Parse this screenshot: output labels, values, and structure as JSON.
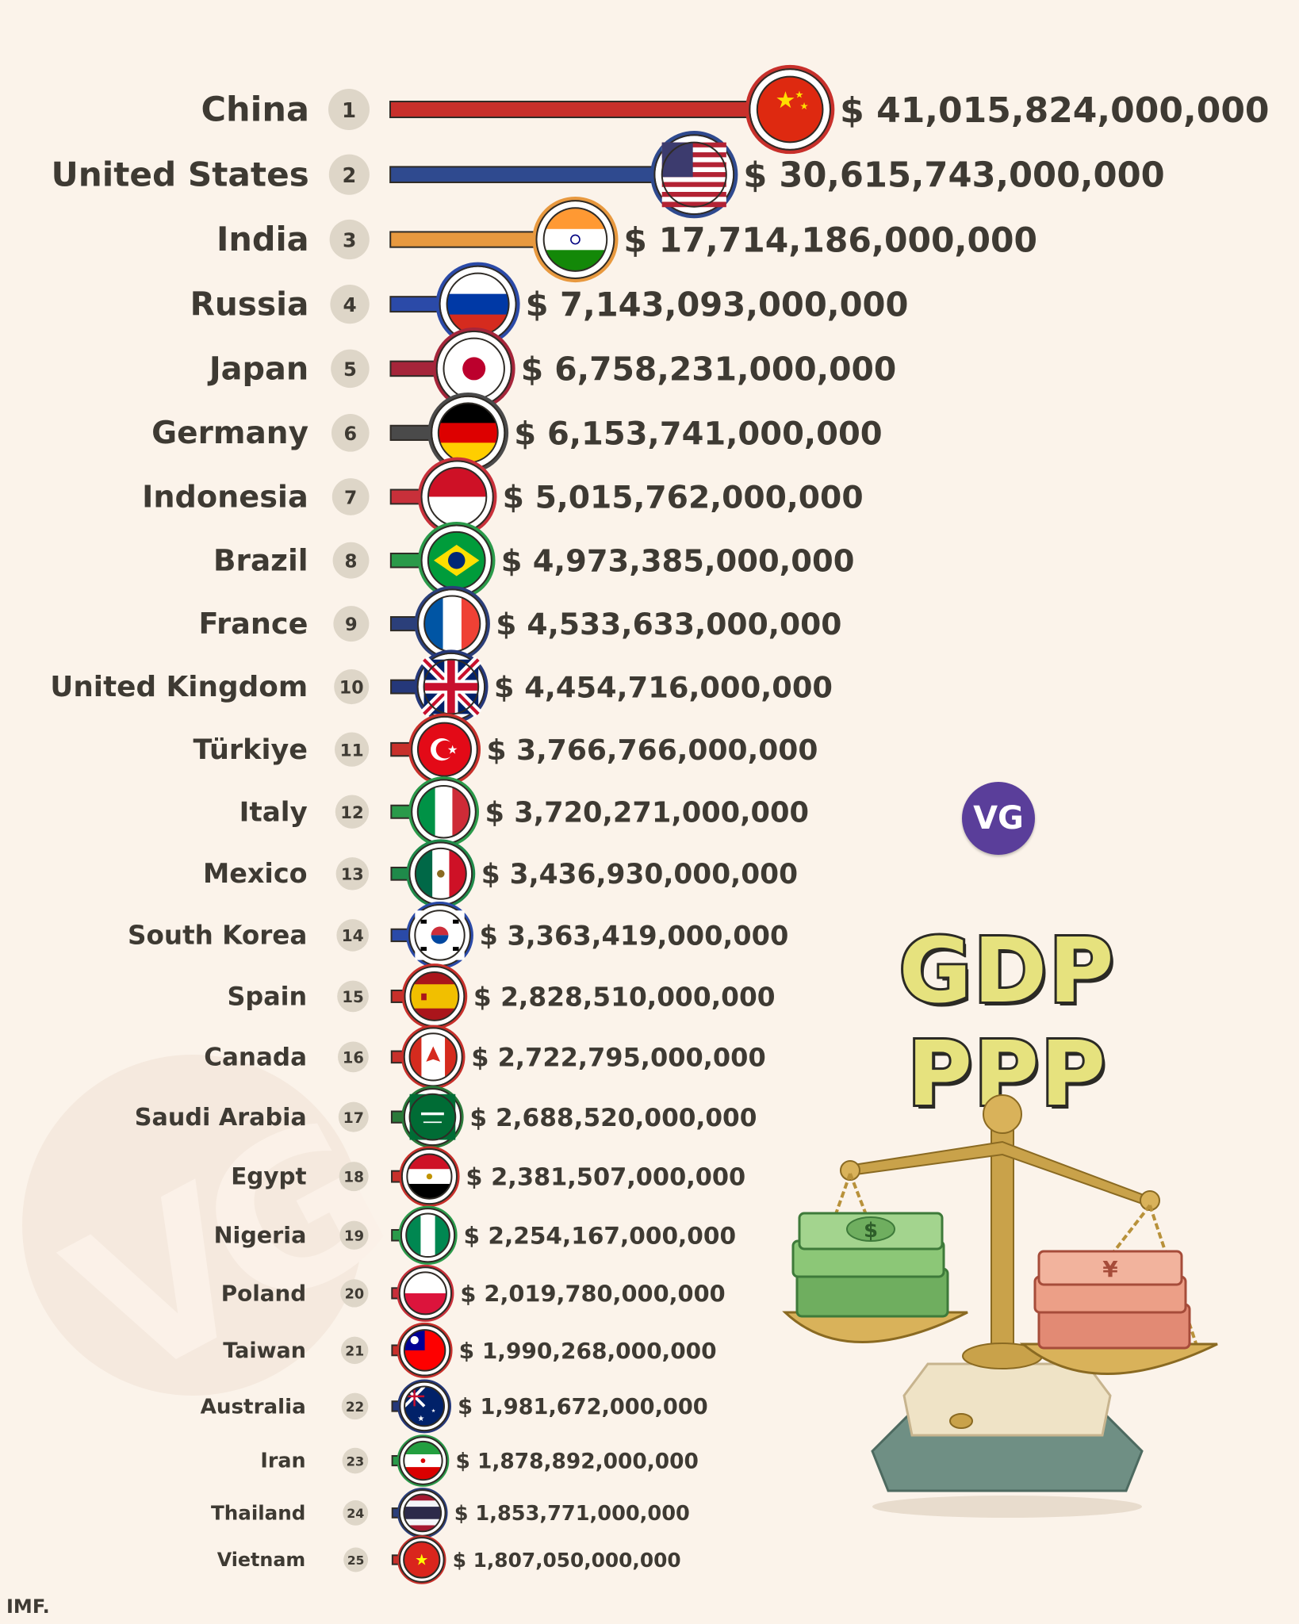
{
  "title": "GDP PPP",
  "logo": "VG",
  "source": "IMF.",
  "colors": {
    "background": "#fbf3ea",
    "text": "#3e3a33",
    "title_fill": "#e6e27e"
  },
  "chart_data": {
    "type": "bar",
    "orientation": "horizontal",
    "title": "GDP PPP",
    "unit": "USD",
    "categories": [
      "China",
      "United States",
      "India",
      "Russia",
      "Japan",
      "Germany",
      "Indonesia",
      "Brazil",
      "France",
      "United Kingdom",
      "Türkiye",
      "Italy",
      "Mexico",
      "South Korea",
      "Spain",
      "Canada",
      "Saudi Arabia",
      "Egypt",
      "Nigeria",
      "Poland",
      "Taiwan",
      "Australia",
      "Iran",
      "Thailand",
      "Vietnam"
    ],
    "ranks": [
      1,
      2,
      3,
      4,
      5,
      6,
      7,
      8,
      9,
      10,
      11,
      12,
      13,
      14,
      15,
      16,
      17,
      18,
      19,
      20,
      21,
      22,
      23,
      24,
      25
    ],
    "values": [
      41015824000000,
      30615743000000,
      17714186000000,
      7143093000000,
      6758231000000,
      6153741000000,
      5015762000000,
      4973385000000,
      4533633000000,
      4454716000000,
      3766766000000,
      3720271000000,
      3436930000000,
      3363419000000,
      2828510000000,
      2722795000000,
      2688520000000,
      2381507000000,
      2254167000000,
      2019780000000,
      1990268000000,
      1981672000000,
      1878892000000,
      1853771000000,
      1807050000000
    ],
    "value_labels": [
      "$ 41,015,824,000,000",
      "$ 30,615,743,000,000",
      "$ 17,714,186,000,000",
      "$ 7,143,093,000,000",
      "$ 6,758,231,000,000",
      "$ 6,153,741,000,000",
      "$ 5,015,762,000,000",
      "$ 4,973,385,000,000",
      "$ 4,533,633,000,000",
      "$ 4,454,716,000,000",
      "$ 3,766,766,000,000",
      "$ 3,720,271,000,000",
      "$ 3,436,930,000,000",
      "$ 3,363,419,000,000",
      "$ 2,828,510,000,000",
      "$ 2,722,795,000,000",
      "$ 2,688,520,000,000",
      "$ 2,381,507,000,000",
      "$ 2,254,167,000,000",
      "$ 2,019,780,000,000",
      "$ 1,990,268,000,000",
      "$ 1,981,672,000,000",
      "$ 1,878,892,000,000",
      "$ 1,853,771,000,000",
      "$ 1,807,050,000,000"
    ],
    "bar_colors": [
      "#c8302b",
      "#2f4a8f",
      "#e8993f",
      "#2b4aa8",
      "#a5253a",
      "#4a4a4a",
      "#c8303a",
      "#2a9a4a",
      "#2b3f7a",
      "#25387a",
      "#c8302b",
      "#2a9a4a",
      "#1f8a4a",
      "#2a4aa8",
      "#c8302b",
      "#c8302b",
      "#2a7a3a",
      "#c8302b",
      "#2a9a4a",
      "#c8303a",
      "#c8302b",
      "#25387a",
      "#2a9a4a",
      "#2b3f7a",
      "#c8302b"
    ],
    "flag_icons": [
      "china-flag-icon",
      "united-states-flag-icon",
      "india-flag-icon",
      "russia-flag-icon",
      "japan-flag-icon",
      "germany-flag-icon",
      "indonesia-flag-icon",
      "brazil-flag-icon",
      "france-flag-icon",
      "united-kingdom-flag-icon",
      "turkiye-flag-icon",
      "italy-flag-icon",
      "mexico-flag-icon",
      "south-korea-flag-icon",
      "spain-flag-icon",
      "canada-flag-icon",
      "saudi-arabia-flag-icon",
      "egypt-flag-icon",
      "nigeria-flag-icon",
      "poland-flag-icon",
      "taiwan-flag-icon",
      "australia-flag-icon",
      "iran-flag-icon",
      "thailand-flag-icon",
      "vietnam-flag-icon"
    ],
    "legend": "none",
    "grid": false
  }
}
